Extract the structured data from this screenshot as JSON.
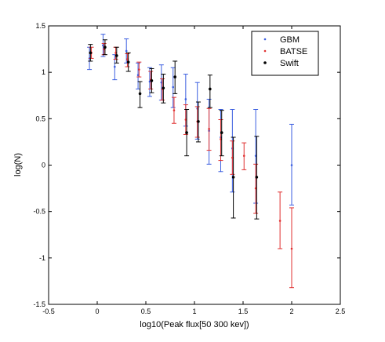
{
  "chart_data": {
    "type": "scatter",
    "title": "",
    "xlabel": "log10(Peak flux[50 300 kev])",
    "ylabel": "log(N)",
    "xlim": [
      -0.5,
      2.5
    ],
    "ylim": [
      -1.5,
      1.5
    ],
    "xticks": [
      -0.5,
      0,
      0.5,
      1,
      1.5,
      2,
      2.5
    ],
    "xtick_labels": [
      "-0.5",
      "0",
      "0.5",
      "1",
      "1.5",
      "2",
      "2.5"
    ],
    "yticks": [
      -1.5,
      -1,
      -0.5,
      0,
      0.5,
      1,
      1.5
    ],
    "ytick_labels": [
      "-1.5",
      "-1",
      "-0.5",
      "0",
      "0.5",
      "1",
      "1.5"
    ],
    "grid": false,
    "legend_position": "top-right",
    "series": [
      {
        "name": "GBM",
        "color": "#3b5ee0",
        "points": [
          {
            "x": -0.08,
            "y": 1.15,
            "lo": 1.03,
            "hi": 1.27
          },
          {
            "x": 0.06,
            "y": 1.29,
            "lo": 1.17,
            "hi": 1.41
          },
          {
            "x": 0.18,
            "y": 1.06,
            "lo": 0.92,
            "hi": 1.19
          },
          {
            "x": 0.3,
            "y": 1.23,
            "lo": 1.1,
            "hi": 1.36
          },
          {
            "x": 0.42,
            "y": 0.97,
            "lo": 0.82,
            "hi": 1.1
          },
          {
            "x": 0.54,
            "y": 0.9,
            "lo": 0.74,
            "hi": 1.05
          },
          {
            "x": 0.66,
            "y": 0.89,
            "lo": 0.7,
            "hi": 1.08
          },
          {
            "x": 0.78,
            "y": 0.84,
            "lo": 0.62,
            "hi": 1.05
          },
          {
            "x": 0.91,
            "y": 0.71,
            "lo": 0.42,
            "hi": 0.98
          },
          {
            "x": 1.03,
            "y": 0.61,
            "lo": 0.28,
            "hi": 0.89
          },
          {
            "x": 1.15,
            "y": 0.37,
            "lo": 0.01,
            "hi": 0.71
          },
          {
            "x": 1.27,
            "y": 0.3,
            "lo": -0.07,
            "hi": 0.6
          },
          {
            "x": 1.39,
            "y": 0.18,
            "lo": -0.29,
            "hi": 0.6
          },
          {
            "x": 1.63,
            "y": 0.1,
            "lo": -0.41,
            "hi": 0.6
          },
          {
            "x": 2.0,
            "y": 0.0,
            "lo": -0.43,
            "hi": 0.44
          }
        ]
      },
      {
        "name": "BATSE",
        "color": "#e03030",
        "points": [
          {
            "x": -0.06,
            "y": 1.21,
            "lo": 1.15,
            "hi": 1.27
          },
          {
            "x": 0.07,
            "y": 1.25,
            "lo": 1.19,
            "hi": 1.31
          },
          {
            "x": 0.19,
            "y": 1.21,
            "lo": 1.14,
            "hi": 1.27
          },
          {
            "x": 0.31,
            "y": 1.14,
            "lo": 1.06,
            "hi": 1.2
          },
          {
            "x": 0.43,
            "y": 1.03,
            "lo": 0.95,
            "hi": 1.11
          },
          {
            "x": 0.55,
            "y": 0.92,
            "lo": 0.82,
            "hi": 1.01
          },
          {
            "x": 0.67,
            "y": 0.82,
            "lo": 0.7,
            "hi": 0.93
          },
          {
            "x": 0.79,
            "y": 0.59,
            "lo": 0.45,
            "hi": 0.73
          },
          {
            "x": 0.91,
            "y": 0.49,
            "lo": 0.33,
            "hi": 0.65
          },
          {
            "x": 1.03,
            "y": 0.47,
            "lo": 0.3,
            "hi": 0.63
          },
          {
            "x": 1.15,
            "y": 0.39,
            "lo": 0.16,
            "hi": 0.61
          },
          {
            "x": 1.27,
            "y": 0.28,
            "lo": 0.05,
            "hi": 0.49
          },
          {
            "x": 1.39,
            "y": 0.08,
            "lo": -0.1,
            "hi": 0.26
          },
          {
            "x": 1.51,
            "y": 0.1,
            "lo": -0.05,
            "hi": 0.24
          },
          {
            "x": 1.63,
            "y": -0.25,
            "lo": -0.52,
            "hi": 0.01
          },
          {
            "x": 1.88,
            "y": -0.6,
            "lo": -0.9,
            "hi": -0.29
          },
          {
            "x": 2.0,
            "y": -0.9,
            "lo": -1.32,
            "hi": -0.46
          }
        ]
      },
      {
        "name": "Swift",
        "color": "#000000",
        "points": [
          {
            "x": -0.07,
            "y": 1.21,
            "lo": 1.12,
            "hi": 1.3
          },
          {
            "x": 0.08,
            "y": 1.27,
            "lo": 1.19,
            "hi": 1.35
          },
          {
            "x": 0.2,
            "y": 1.18,
            "lo": 1.1,
            "hi": 1.27
          },
          {
            "x": 0.32,
            "y": 1.11,
            "lo": 1.01,
            "hi": 1.21
          },
          {
            "x": 0.44,
            "y": 0.77,
            "lo": 0.62,
            "hi": 0.9
          },
          {
            "x": 0.56,
            "y": 0.91,
            "lo": 0.78,
            "hi": 1.04
          },
          {
            "x": 0.68,
            "y": 0.83,
            "lo": 0.67,
            "hi": 0.98
          },
          {
            "x": 0.8,
            "y": 0.95,
            "lo": 0.77,
            "hi": 1.12
          },
          {
            "x": 0.92,
            "y": 0.35,
            "lo": 0.1,
            "hi": 0.6
          },
          {
            "x": 1.04,
            "y": 0.47,
            "lo": 0.25,
            "hi": 0.68
          },
          {
            "x": 1.16,
            "y": 0.82,
            "lo": 0.62,
            "hi": 0.97
          },
          {
            "x": 1.28,
            "y": 0.35,
            "lo": 0.1,
            "hi": 0.59
          },
          {
            "x": 1.4,
            "y": -0.13,
            "lo": -0.57,
            "hi": 0.3
          },
          {
            "x": 1.64,
            "y": -0.13,
            "lo": -0.58,
            "hi": 0.31
          }
        ]
      }
    ]
  }
}
